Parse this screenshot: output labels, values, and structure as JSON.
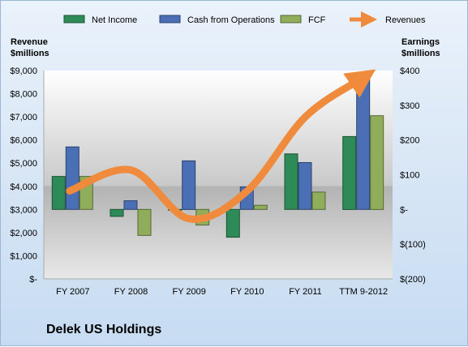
{
  "chart_data": {
    "type": "bar",
    "title": "Delek US Holdings",
    "categories": [
      "FY 2007",
      "FY 2008",
      "FY 2009",
      "FY 2010",
      "FY 2011",
      "TTM 9-2012"
    ],
    "left_axis": {
      "label_line1": "Revenue",
      "label_line2": "$millions",
      "ticks": [
        "$-",
        "$1,000",
        "$2,000",
        "$3,000",
        "$4,000",
        "$5,000",
        "$6,000",
        "$7,000",
        "$8,000",
        "$9,000"
      ],
      "ylim": [
        0,
        9000
      ]
    },
    "right_axis": {
      "label_line1": "Earnings",
      "label_line2": "$millions",
      "ticks": [
        "$(200)",
        "$(100)",
        "$-",
        "$100",
        "$200",
        "$300",
        "$400"
      ],
      "ylim": [
        -200,
        400
      ]
    },
    "series": [
      {
        "name": "Net Income",
        "axis": "right",
        "kind": "bar",
        "color": "#2e8b57",
        "values": [
          95,
          -20,
          0,
          -80,
          160,
          210
        ]
      },
      {
        "name": "Cash from Operations",
        "axis": "right",
        "kind": "bar",
        "color": "#4a6fb5",
        "values": [
          180,
          25,
          140,
          65,
          135,
          375
        ]
      },
      {
        "name": "FCF",
        "axis": "right",
        "kind": "bar",
        "color": "#8fad5a",
        "values": [
          95,
          -75,
          -45,
          12,
          50,
          270
        ]
      },
      {
        "name": "Revenues",
        "axis": "left",
        "kind": "line",
        "color": "#f08a3c",
        "values": [
          3800,
          4700,
          2600,
          3800,
          7000,
          8700
        ]
      }
    ],
    "legend_position": "top",
    "grid": false
  }
}
